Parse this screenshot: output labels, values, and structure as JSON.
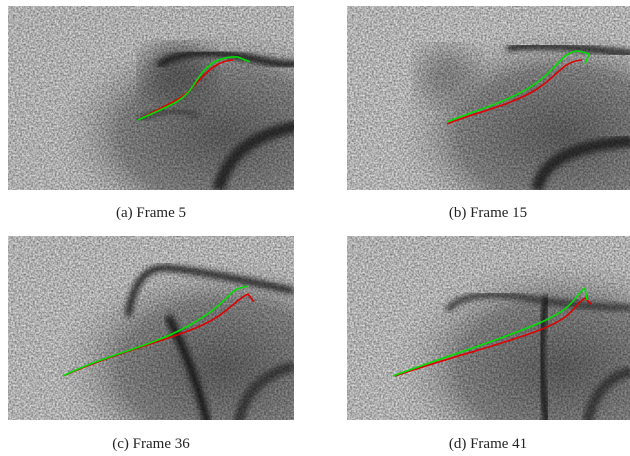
{
  "figure": {
    "panels": [
      {
        "caption": "(a)  Frame 5"
      },
      {
        "caption": "(b)  Frame 15"
      },
      {
        "caption": "(c)  Frame 36"
      },
      {
        "caption": "(d)  Frame 41"
      }
    ]
  }
}
